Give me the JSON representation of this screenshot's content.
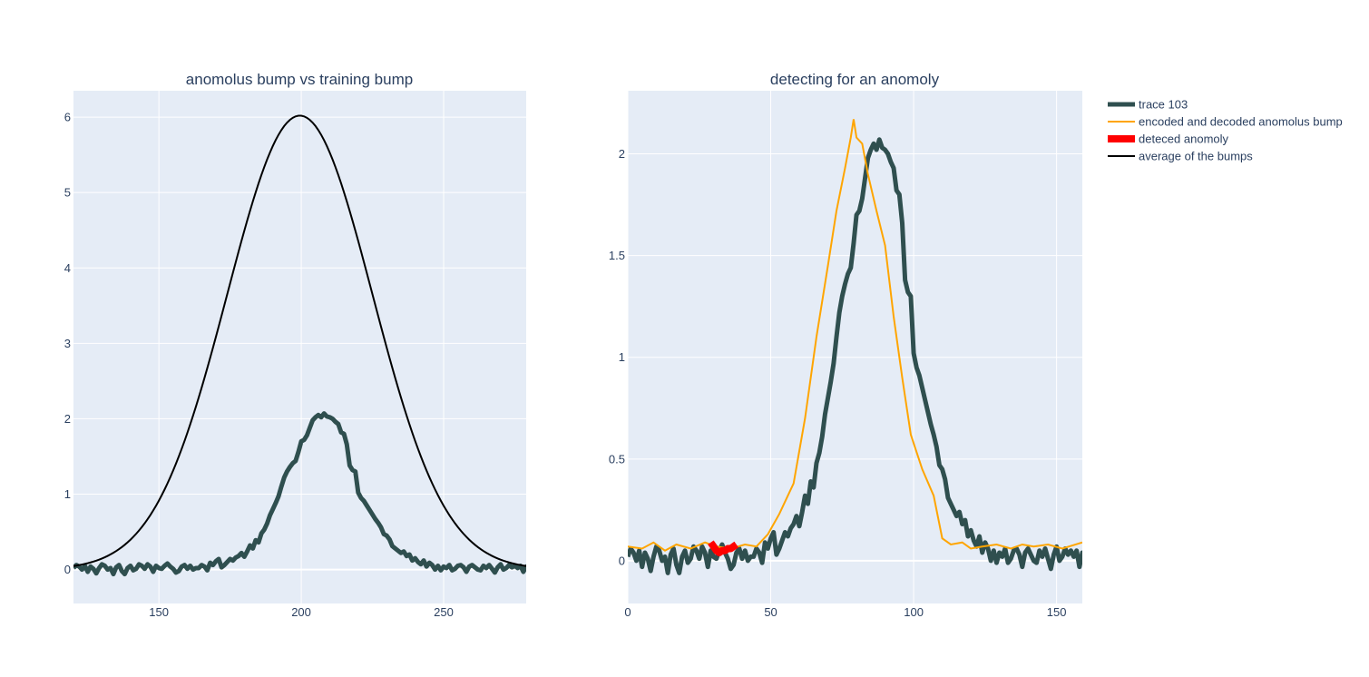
{
  "chart_data": [
    {
      "type": "line",
      "title": "anomolus bump vs training bump",
      "xlim": [
        120,
        279
      ],
      "ylim": [
        -0.45,
        6.35
      ],
      "x_ticks": [
        "150",
        "200",
        "250"
      ],
      "x_tick_values": [
        150,
        200,
        250
      ],
      "y_ticks": [
        "0",
        "1",
        "2",
        "3",
        "4",
        "5",
        "6"
      ],
      "y_tick_values": [
        0,
        1,
        2,
        3,
        4,
        5,
        6
      ],
      "grid": true,
      "series": [
        {
          "name": "trace 103",
          "color": "#2f4f4f",
          "x_start": 120,
          "x_step": 1,
          "y": [
            0.02,
            0.06,
            0.04,
            0.0,
            0.05,
            -0.03,
            0.04,
            0.01,
            -0.05,
            0.02,
            0.07,
            0.05,
            0.0,
            0.02,
            -0.06,
            0.03,
            0.06,
            -0.02,
            -0.06,
            0.02,
            0.05,
            -0.01,
            0.01,
            0.07,
            0.05,
            0.01,
            0.07,
            0.04,
            -0.03,
            0.05,
            0.02,
            0.01,
            0.05,
            0.08,
            0.04,
            0.01,
            -0.04,
            -0.02,
            0.04,
            0.06,
            0.01,
            0.05,
            0.0,
            0.02,
            0.02,
            0.06,
            0.04,
            -0.01,
            0.09,
            0.06,
            0.11,
            0.14,
            0.03,
            0.06,
            0.1,
            0.14,
            0.12,
            0.16,
            0.18,
            0.22,
            0.17,
            0.24,
            0.32,
            0.28,
            0.39,
            0.36,
            0.48,
            0.53,
            0.61,
            0.72,
            0.8,
            0.88,
            0.97,
            1.1,
            1.22,
            1.3,
            1.36,
            1.41,
            1.44,
            1.56,
            1.7,
            1.72,
            1.78,
            1.88,
            1.98,
            2.02,
            2.05,
            2.02,
            2.07,
            2.03,
            2.02,
            2.0,
            1.96,
            1.93,
            1.82,
            1.8,
            1.66,
            1.38,
            1.32,
            1.3,
            1.02,
            0.95,
            0.91,
            0.85,
            0.79,
            0.73,
            0.67,
            0.62,
            0.56,
            0.47,
            0.45,
            0.4,
            0.31,
            0.28,
            0.25,
            0.22,
            0.24,
            0.18,
            0.2,
            0.12,
            0.15,
            0.1,
            0.07,
            0.12,
            0.04,
            0.09,
            0.06,
            0.0,
            0.05,
            -0.01,
            0.04,
            0.02,
            0.06,
            -0.01,
            0.01,
            0.05,
            0.06,
            0.03,
            -0.03,
            0.04,
            0.06,
            0.03,
            0.0,
            -0.01,
            0.05,
            0.02,
            0.06,
            0.01,
            -0.04,
            0.03,
            0.07,
            0.0,
            0.02,
            0.06,
            0.03,
            0.05,
            0.02,
            0.05,
            -0.03,
            0.04,
            -0.02,
            0.03,
            -0.04,
            0.04
          ]
        },
        {
          "name": "average of the bumps",
          "color": "#000000",
          "x_start": 120,
          "x_step": 1,
          "gaussian": {
            "amplitude": 6.02,
            "center": 199.5,
            "sigma": 25.5
          }
        }
      ]
    },
    {
      "type": "line",
      "title": "detecting for an anomoly",
      "xlim": [
        0,
        159
      ],
      "ylim": [
        -0.21,
        2.31
      ],
      "x_ticks": [
        "0",
        "50",
        "100",
        "150"
      ],
      "x_tick_values": [
        0,
        50,
        100,
        150
      ],
      "y_ticks": [
        "0",
        "0.5",
        "1",
        "1.5",
        "2"
      ],
      "y_tick_values": [
        0,
        0.5,
        1,
        1.5,
        2
      ],
      "grid": true,
      "series": [
        {
          "name": "trace 103",
          "color": "#2f4f4f",
          "source": "same as left trace, x shifted by -120"
        },
        {
          "name": "encoded and decoded anomolus bump",
          "color": "#ffa500",
          "x": [
            0,
            5,
            9,
            13,
            17,
            22,
            27,
            31,
            36,
            41,
            45,
            49,
            53,
            58,
            62,
            66,
            70,
            73,
            76,
            78,
            79,
            80,
            82,
            84,
            87,
            90,
            93,
            96,
            99,
            103,
            107,
            110,
            113,
            117,
            120,
            124,
            129,
            134,
            138,
            142,
            147,
            152,
            159
          ],
          "y": [
            0.07,
            0.06,
            0.09,
            0.05,
            0.08,
            0.06,
            0.09,
            0.07,
            0.06,
            0.08,
            0.07,
            0.13,
            0.23,
            0.38,
            0.7,
            1.1,
            1.45,
            1.72,
            1.93,
            2.08,
            2.17,
            2.08,
            2.05,
            1.9,
            1.72,
            1.55,
            1.2,
            0.9,
            0.62,
            0.45,
            0.32,
            0.11,
            0.08,
            0.09,
            0.06,
            0.07,
            0.08,
            0.06,
            0.08,
            0.07,
            0.08,
            0.06,
            0.09
          ]
        },
        {
          "name": "deteced anomoly",
          "color": "#ff0000",
          "x": [
            29,
            30,
            31,
            32,
            33,
            34,
            35,
            36,
            37,
            38
          ],
          "y": [
            0.09,
            0.07,
            0.05,
            0.04,
            0.05,
            0.05,
            0.06,
            0.06,
            0.07,
            0.08
          ]
        }
      ]
    }
  ],
  "legend": {
    "placement": "right",
    "entries": [
      {
        "label": "trace 103",
        "color": "#2f4f4f",
        "style": "thick-line"
      },
      {
        "label": "encoded and decoded anomolus bump",
        "color": "#ffa500",
        "style": "line"
      },
      {
        "label": "deteced anomoly",
        "color": "#ff0000",
        "style": "thick-line"
      },
      {
        "label": "average of the bumps",
        "color": "#000000",
        "style": "line"
      }
    ]
  },
  "colors": {
    "plot_background": "#e5ecf6",
    "text": "#2a3f5f",
    "grid": "#ffffff"
  }
}
